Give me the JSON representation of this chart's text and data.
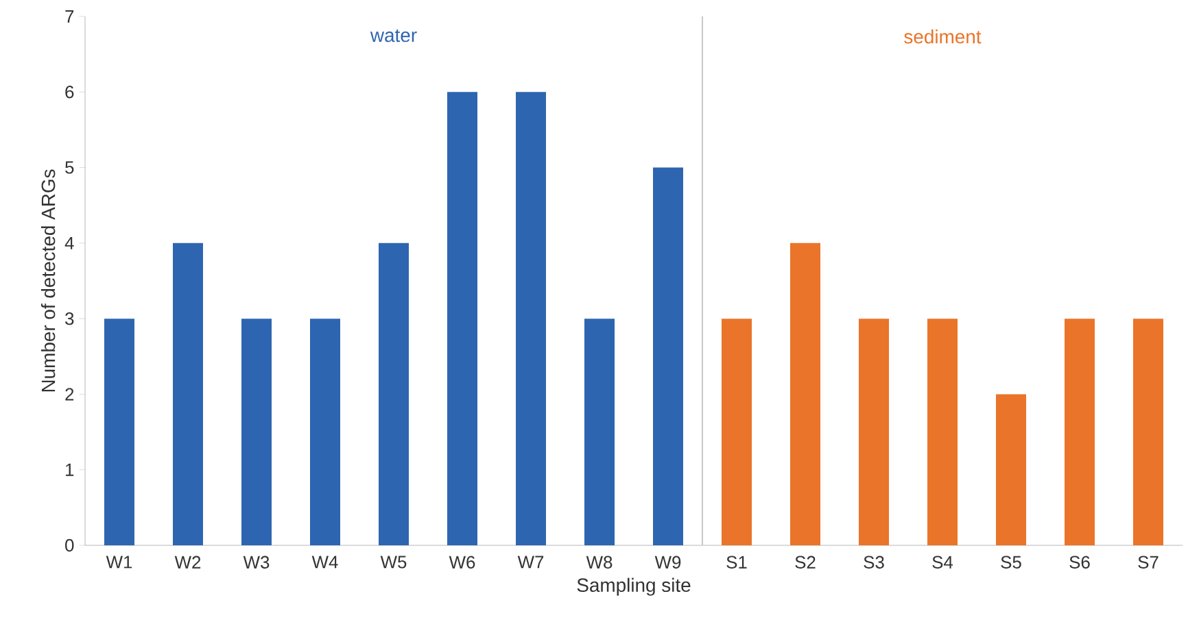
{
  "chart_data": {
    "type": "bar",
    "xlabel": "Sampling site",
    "ylabel": "Number of detected ARGs",
    "categories": [
      "W1",
      "W2",
      "W3",
      "W4",
      "W5",
      "W6",
      "W7",
      "W8",
      "W9",
      "S1",
      "S2",
      "S3",
      "S4",
      "S5",
      "S6",
      "S7"
    ],
    "series": [
      {
        "name": "water",
        "color": "#2e65b0",
        "values": [
          3,
          4,
          3,
          3,
          4,
          6,
          6,
          3,
          5,
          null,
          null,
          null,
          null,
          null,
          null,
          null
        ]
      },
      {
        "name": "sediment",
        "color": "#ea7429",
        "values": [
          null,
          null,
          null,
          null,
          null,
          null,
          null,
          null,
          null,
          3,
          4,
          3,
          3,
          2,
          3,
          3
        ]
      }
    ],
    "ylim": [
      0,
      7
    ],
    "yticks": [
      0,
      1,
      2,
      3,
      4,
      5,
      6,
      7
    ],
    "grid": false,
    "legend": false
  }
}
